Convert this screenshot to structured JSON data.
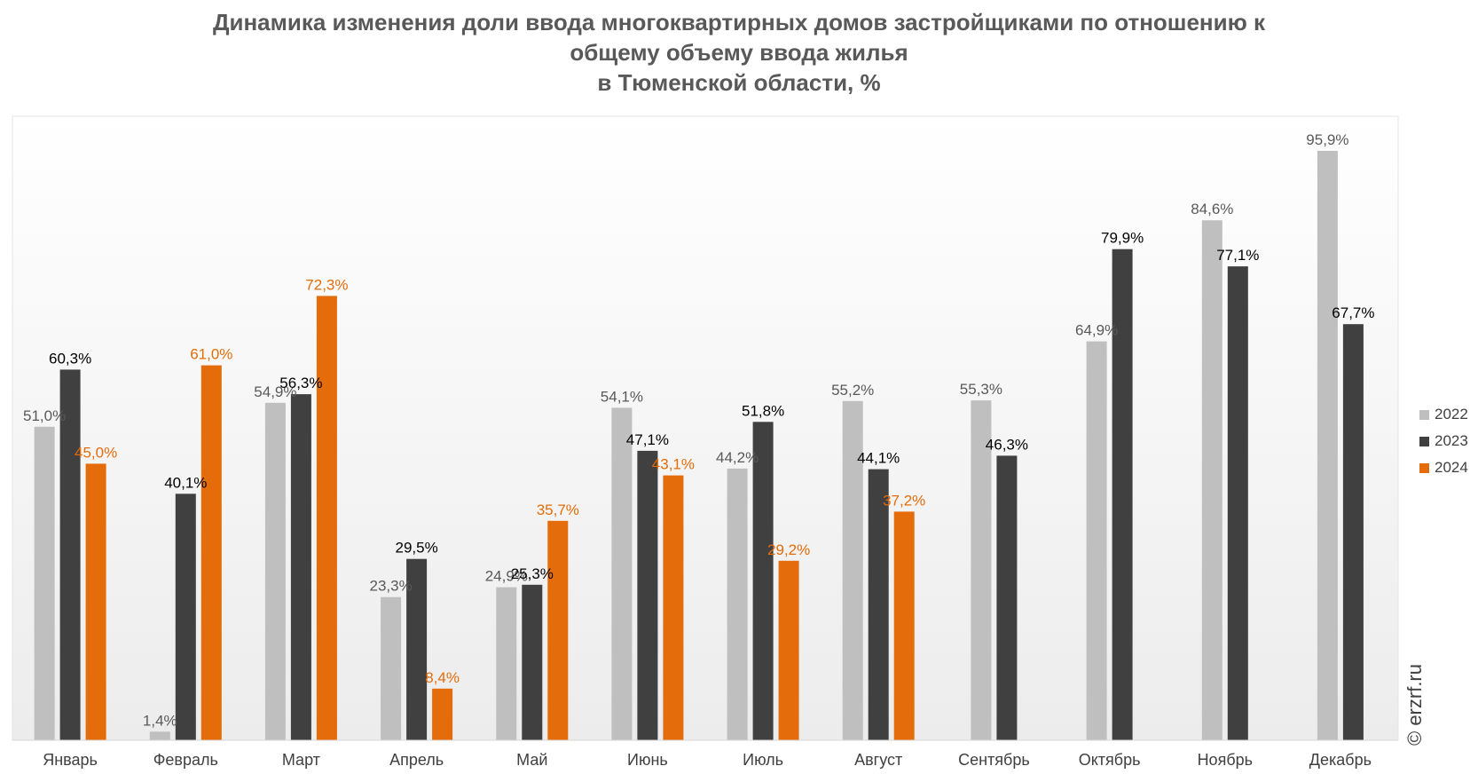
{
  "title_lines": [
    "Динамика изменения доли ввода многоквартирных домов застройщиками по отношению к",
    "общему объему ввода жилья",
    "в Тюменской области, %"
  ],
  "watermark": "© erzrf.ru",
  "colors": {
    "2022": "#bfbfbf",
    "2023": "#404040",
    "2024": "#e46c0a"
  },
  "chart_data": {
    "type": "bar",
    "title": "Динамика изменения доли ввода многоквартирных домов застройщиками по отношению к общему объему ввода жилья в Тюменской области, %",
    "categories": [
      "Январь",
      "Февраль",
      "Март",
      "Апрель",
      "Май",
      "Июнь",
      "Июль",
      "Август",
      "Сентябрь",
      "Октябрь",
      "Ноябрь",
      "Декабрь"
    ],
    "series": [
      {
        "name": "2022",
        "values": [
          51.0,
          1.4,
          54.9,
          23.3,
          24.9,
          54.1,
          44.2,
          55.2,
          55.3,
          64.9,
          84.6,
          95.9
        ],
        "labels": [
          "51,0%",
          "1,4%",
          "54,9%",
          "23,3%",
          "24,9%",
          "54,1%",
          "44,2%",
          "55,2%",
          "55,3%",
          "64,9%",
          "84,6%",
          "95,9%"
        ]
      },
      {
        "name": "2023",
        "values": [
          60.3,
          40.1,
          56.3,
          29.5,
          25.3,
          47.1,
          51.8,
          44.1,
          46.3,
          79.9,
          77.1,
          67.7
        ],
        "labels": [
          "60,3%",
          "40,1%",
          "56,3%",
          "29,5%",
          "25,3%",
          "47,1%",
          "51,8%",
          "44,1%",
          "46,3%",
          "79,9%",
          "77,1%",
          "67,7%"
        ]
      },
      {
        "name": "2024",
        "values": [
          45.0,
          61.0,
          72.3,
          8.4,
          35.7,
          43.1,
          29.2,
          37.2,
          null,
          null,
          null,
          null
        ],
        "labels": [
          "45,0%",
          "61,0%",
          "72,3%",
          "8,4%",
          "35,7%",
          "43,1%",
          "29,2%",
          "37,2%",
          null,
          null,
          null,
          null
        ]
      }
    ],
    "ylim": [
      0,
      100
    ],
    "grid": false,
    "legend": "right"
  }
}
